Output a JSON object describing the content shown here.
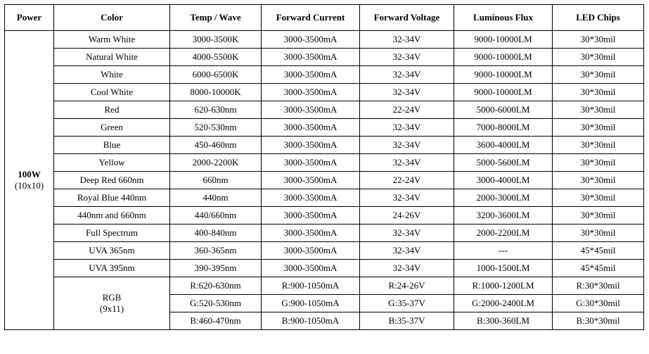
{
  "table": {
    "columns": [
      "Power",
      "Color",
      "Temp / Wave",
      "Forward Current",
      "Forward Voltage",
      "Luminous Flux",
      "LED Chips"
    ],
    "power": {
      "label": "100W",
      "sub": "(10x10)"
    },
    "rows": [
      {
        "color": "Warm White",
        "temp": "3000-3500K",
        "fc": "3000-3500mA",
        "fv": "32-34V",
        "lf": "9000-10000LM",
        "chip": "30*30mil"
      },
      {
        "color": "Natural White",
        "temp": "4000-5500K",
        "fc": "3000-3500mA",
        "fv": "32-34V",
        "lf": "9000-10000LM",
        "chip": "30*30mil"
      },
      {
        "color": "White",
        "temp": "6000-6500K",
        "fc": "3000-3500mA",
        "fv": "32-34V",
        "lf": "9000-10000LM",
        "chip": "30*30mil"
      },
      {
        "color": "Cool White",
        "temp": "8000-10000K",
        "fc": "3000-3500mA",
        "fv": "32-34V",
        "lf": "9000-10000LM",
        "chip": "30*30mil"
      },
      {
        "color": "Red",
        "temp": "620-630nm",
        "fc": "3000-3500mA",
        "fv": "22-24V",
        "lf": "5000-6000LM",
        "chip": "30*30mil"
      },
      {
        "color": "Green",
        "temp": "520-530nm",
        "fc": "3000-3500mA",
        "fv": "32-34V",
        "lf": "7000-8000LM",
        "chip": "30*30mil"
      },
      {
        "color": "Blue",
        "temp": "450-460nm",
        "fc": "3000-3500mA",
        "fv": "32-34V",
        "lf": "3600-4000LM",
        "chip": "30*30mil"
      },
      {
        "color": "Yellow",
        "temp": "2000-2200K",
        "fc": "3000-3500mA",
        "fv": "32-34V",
        "lf": "5000-5600LM",
        "chip": "30*30mil"
      },
      {
        "color": "Deep Red 660nm",
        "temp": "660nm",
        "fc": "3000-3500mA",
        "fv": "22-24V",
        "lf": "3000-4000LM",
        "chip": "30*30mil"
      },
      {
        "color": "Royal Blue 440nm",
        "temp": "440nm",
        "fc": "3000-3500mA",
        "fv": "32-34V",
        "lf": "2000-3000LM",
        "chip": "30*30mil"
      },
      {
        "color": "440nm and 660nm",
        "temp": "440/660nm",
        "fc": "3000-3500mA",
        "fv": "24-26V",
        "lf": "3200-3600LM",
        "chip": "30*30mil"
      },
      {
        "color": "Full Spectrum",
        "temp": "400-840nm",
        "fc": "3000-3500mA",
        "fv": "32-34V",
        "lf": "2000-2200LM",
        "chip": "30*30mil"
      },
      {
        "color": "UVA 365nm",
        "temp": "360-365nm",
        "fc": "3000-3500mA",
        "fv": "32-34V",
        "lf": "---",
        "chip": "45*45mil"
      },
      {
        "color": "UVA 395nm",
        "temp": "390-395nm",
        "fc": "3000-3500mA",
        "fv": "32-34V",
        "lf": "1000-1500LM",
        "chip": "45*45mil"
      }
    ],
    "rgb": {
      "label": "RGB",
      "sub": "(9x11)",
      "subrows": [
        {
          "temp": "R:620-630nm",
          "fc": "R:900-1050mA",
          "fv": "R:24-26V",
          "lf": "R:1000-1200LM",
          "chip": "R:30*30mil"
        },
        {
          "temp": "G:520-530nm",
          "fc": "G:900-1050mA",
          "fv": "G:35-37V",
          "lf": "G:2000-2400LM",
          "chip": "G:30*30mil"
        },
        {
          "temp": "B:460-470nm",
          "fc": "B:900-1050mA",
          "fv": "B:35-37V",
          "lf": "B:300-360LM",
          "chip": "B:30*30mil"
        }
      ]
    }
  }
}
